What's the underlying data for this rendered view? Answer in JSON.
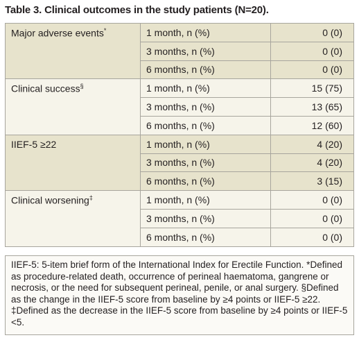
{
  "title": "Table 3. Clinical outcomes in the study patients (N=20).",
  "groups": [
    {
      "label": "Major adverse events",
      "mark": "*",
      "rows": [
        [
          "1 month, n (%)",
          "0 (0)"
        ],
        [
          "3 months, n (%)",
          "0 (0)"
        ],
        [
          "6 months, n (%)",
          "0 (0)"
        ]
      ]
    },
    {
      "label": "Clinical success",
      "mark": "§",
      "rows": [
        [
          "1 month, n (%)",
          "15 (75)"
        ],
        [
          "3 months, n (%)",
          "13 (65)"
        ],
        [
          "6 months, n (%)",
          "12 (60)"
        ]
      ]
    },
    {
      "label": "IIEF-5 ≥22",
      "mark": "",
      "rows": [
        [
          "1 month, n (%)",
          "4 (20)"
        ],
        [
          "3 months, n (%)",
          "4 (20)"
        ],
        [
          "6 months, n (%)",
          "3 (15)"
        ]
      ]
    },
    {
      "label": "Clinical worsening",
      "mark": "‡",
      "rows": [
        [
          "1 month, n (%)",
          "0 (0)"
        ],
        [
          "3 months, n (%)",
          "0 (0)"
        ],
        [
          "6 months, n (%)",
          "0 (0)"
        ]
      ]
    }
  ],
  "footnote": "IIEF-5: 5-item brief form of the International Index for Erectile Function. *Defined as procedure-related death, occurrence of perineal haematoma, gangrene or necrosis, or the need for subsequent perineal, penile, or anal surgery. §Defined as the change in the IIEF-5 score from baseline by ≥4 points or IIEF-5 ≥22. ‡Defined as the decrease in the IIEF-5 score from baseline by ≥4 points or IIEF-5 <5."
}
